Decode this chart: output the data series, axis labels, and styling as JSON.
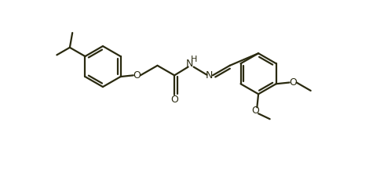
{
  "bg": "#ffffff",
  "lc": "#2a2a10",
  "lw": 1.6,
  "fs": 8.5,
  "figsize": [
    4.98,
    2.43
  ],
  "dpi": 100,
  "xlim": [
    0,
    10.5
  ],
  "ylim": [
    -2.8,
    4.2
  ]
}
